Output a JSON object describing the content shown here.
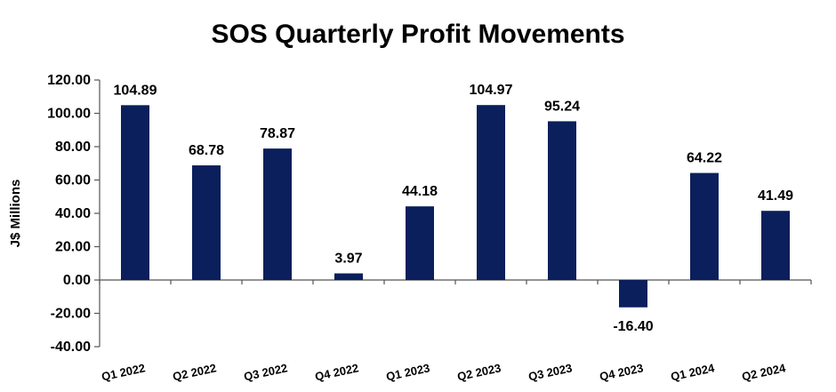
{
  "chart_data": {
    "type": "bar",
    "title": "SOS Quarterly Profit Movements",
    "xlabel": "",
    "ylabel": "J$ Millions",
    "ylim": [
      -40,
      120
    ],
    "ytick_step": 20,
    "ytick_labels": [
      "-40.00",
      "-20.00",
      "0.00",
      "20.00",
      "40.00",
      "60.00",
      "80.00",
      "100.00",
      "120.00"
    ],
    "categories": [
      "Q1 2022",
      "Q2 2022",
      "Q3 2022",
      "Q4 2022",
      "Q1 2023",
      "Q2 2023",
      "Q3 2023",
      "Q4 2023",
      "Q1 2024",
      "Q2 2024"
    ],
    "values": [
      104.89,
      68.78,
      78.87,
      3.97,
      44.18,
      104.97,
      95.24,
      -16.4,
      64.22,
      41.49
    ],
    "value_labels": [
      "104.89",
      "68.78",
      "78.87",
      "3.97",
      "44.18",
      "104.97",
      "95.24",
      "-16.40",
      "64.22",
      "41.49"
    ],
    "bar_color": "#0a1f5c",
    "grid": false,
    "legend": "none"
  }
}
